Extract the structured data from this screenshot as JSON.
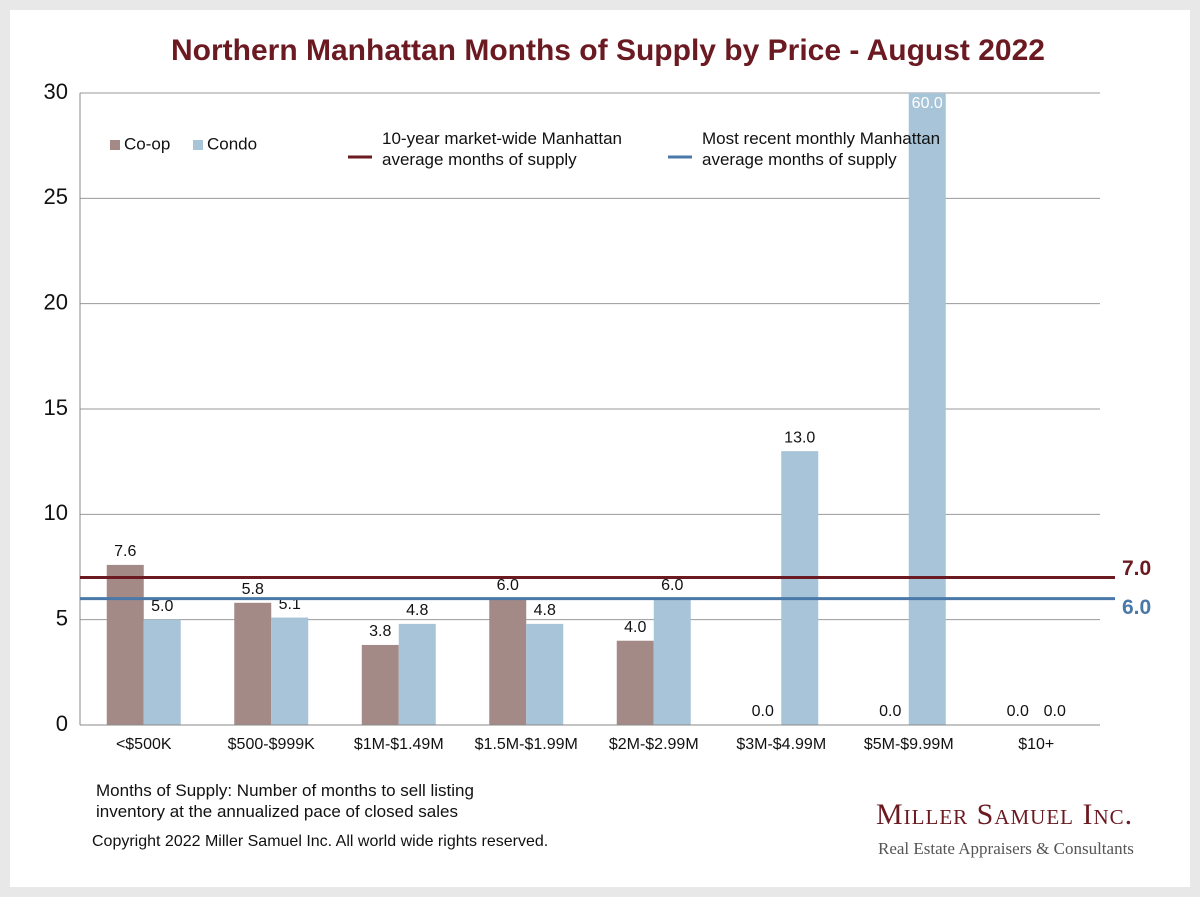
{
  "chart_data": {
    "type": "bar",
    "title": "Northern Manhattan Months of Supply by Price - August 2022",
    "categories": [
      "<$500K",
      "$500-$999K",
      "$1M-$1.49M",
      "$1.5M-$1.99M",
      "$2M-$2.99M",
      "$3M-$4.99M",
      "$5M-$9.99M",
      "$10+"
    ],
    "series": [
      {
        "name": "Co-op",
        "color": "#a48a87",
        "values": [
          7.6,
          5.8,
          3.8,
          6.0,
          4.0,
          0.0,
          0.0,
          0.0
        ],
        "value_labels": [
          "7.6",
          "5.8",
          "3.8",
          "6.0",
          "4.0",
          "0.0",
          "0.0",
          "0.0"
        ]
      },
      {
        "name": "Condo",
        "color": "#a8c4d9",
        "values": [
          5.0,
          5.1,
          4.8,
          4.8,
          6.0,
          13.0,
          60.0,
          0.0
        ],
        "value_labels": [
          "5.0",
          "5.1",
          "4.8",
          "4.8",
          "6.0",
          "13.0",
          "60.0",
          "0.0"
        ]
      }
    ],
    "reference_lines": [
      {
        "name": "10-year market-wide Manhattan average months of supply",
        "value": 7.0,
        "label": "7.0",
        "color": "#6b1a22"
      },
      {
        "name": "Most recent monthly Manhattan average months of supply",
        "value": 6.0,
        "label": "6.0",
        "color": "#4a78a8"
      }
    ],
    "ylim": [
      0,
      30
    ],
    "yticks": [
      0,
      5,
      10,
      15,
      20,
      25,
      30
    ],
    "grid": true,
    "footnote": "Months of Supply: Number of months to sell listing inventory at the annualized pace of closed sales",
    "copyright": "Copyright 2022 Miller Samuel Inc.  All world wide rights reserved.",
    "logo": {
      "name": "Miller Samuel Inc.",
      "tagline": "Real Estate Appraisers & Consultants"
    }
  }
}
